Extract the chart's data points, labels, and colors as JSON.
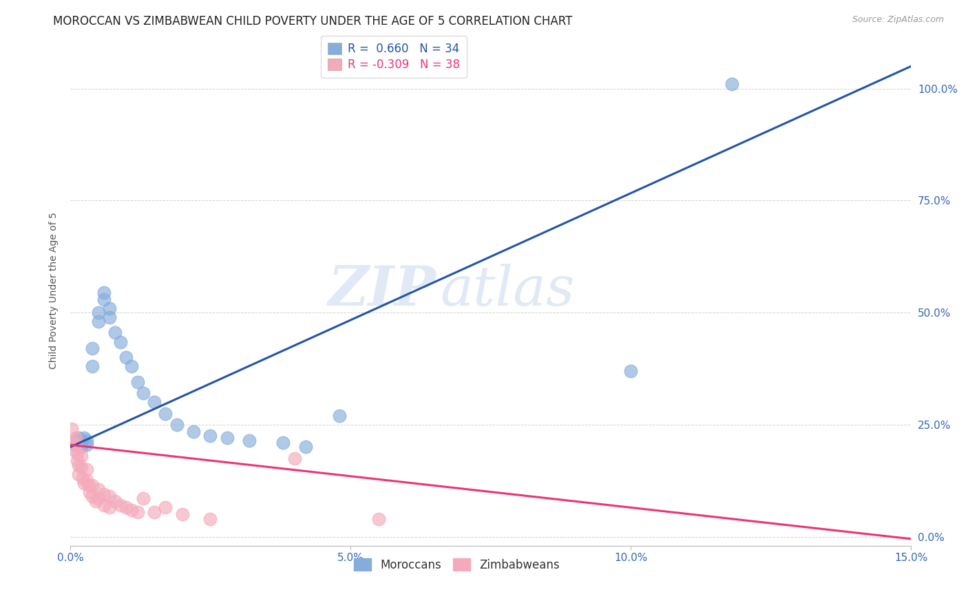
{
  "title": "MOROCCAN VS ZIMBABWEAN CHILD POVERTY UNDER THE AGE OF 5 CORRELATION CHART",
  "source": "Source: ZipAtlas.com",
  "ylabel": "Child Poverty Under the Age of 5",
  "xlim": [
    0.0,
    0.15
  ],
  "ylim": [
    -0.02,
    1.12
  ],
  "x_ticks": [
    0.0,
    0.05,
    0.1,
    0.15
  ],
  "x_tick_labels": [
    "0.0%",
    "5.0%",
    "10.0%",
    "15.0%"
  ],
  "y_ticks": [
    0.0,
    0.25,
    0.5,
    0.75,
    1.0
  ],
  "y_tick_labels": [
    "0.0%",
    "25.0%",
    "50.0%",
    "75.0%",
    "100.0%"
  ],
  "moroccan_color": "#85ADDB",
  "zimbabwean_color": "#F4AABB",
  "moroccan_line_color": "#2255AA",
  "zimbabwean_line_color": "#EE3377",
  "R_moroccan": 0.66,
  "N_moroccan": 34,
  "R_zimbabwean": -0.309,
  "N_zimbabwean": 38,
  "mor_line_x0": 0.0,
  "mor_line_y0": 0.2,
  "mor_line_x1": 0.15,
  "mor_line_y1": 1.05,
  "zim_line_x0": 0.0,
  "zim_line_y0": 0.205,
  "zim_line_x1": 0.15,
  "zim_line_y1": -0.005,
  "moroccan_x": [
    0.0008,
    0.001,
    0.0015,
    0.002,
    0.002,
    0.0025,
    0.003,
    0.003,
    0.004,
    0.004,
    0.005,
    0.005,
    0.006,
    0.006,
    0.007,
    0.007,
    0.008,
    0.009,
    0.01,
    0.011,
    0.012,
    0.013,
    0.015,
    0.017,
    0.019,
    0.022,
    0.025,
    0.028,
    0.032,
    0.038,
    0.042,
    0.048,
    0.1,
    0.118
  ],
  "moroccan_y": [
    0.205,
    0.215,
    0.22,
    0.2,
    0.215,
    0.22,
    0.215,
    0.205,
    0.38,
    0.42,
    0.48,
    0.5,
    0.53,
    0.545,
    0.49,
    0.51,
    0.455,
    0.435,
    0.4,
    0.38,
    0.345,
    0.32,
    0.3,
    0.275,
    0.25,
    0.235,
    0.225,
    0.22,
    0.215,
    0.21,
    0.2,
    0.27,
    0.37,
    1.01
  ],
  "zimbabwean_x": [
    0.0003,
    0.0005,
    0.0007,
    0.001,
    0.001,
    0.0012,
    0.0013,
    0.0015,
    0.0015,
    0.002,
    0.002,
    0.0022,
    0.0025,
    0.003,
    0.003,
    0.0033,
    0.0035,
    0.004,
    0.004,
    0.0045,
    0.005,
    0.005,
    0.006,
    0.006,
    0.007,
    0.007,
    0.008,
    0.009,
    0.01,
    0.011,
    0.012,
    0.013,
    0.015,
    0.017,
    0.02,
    0.025,
    0.04,
    0.055
  ],
  "zimbabwean_y": [
    0.24,
    0.21,
    0.195,
    0.22,
    0.205,
    0.185,
    0.17,
    0.16,
    0.14,
    0.18,
    0.155,
    0.13,
    0.12,
    0.15,
    0.125,
    0.115,
    0.1,
    0.115,
    0.09,
    0.08,
    0.105,
    0.085,
    0.095,
    0.07,
    0.09,
    0.065,
    0.08,
    0.07,
    0.065,
    0.06,
    0.055,
    0.085,
    0.055,
    0.065,
    0.05,
    0.04,
    0.175,
    0.04
  ],
  "title_fontsize": 12,
  "axis_label_fontsize": 10,
  "tick_fontsize": 11,
  "legend_fontsize": 12
}
